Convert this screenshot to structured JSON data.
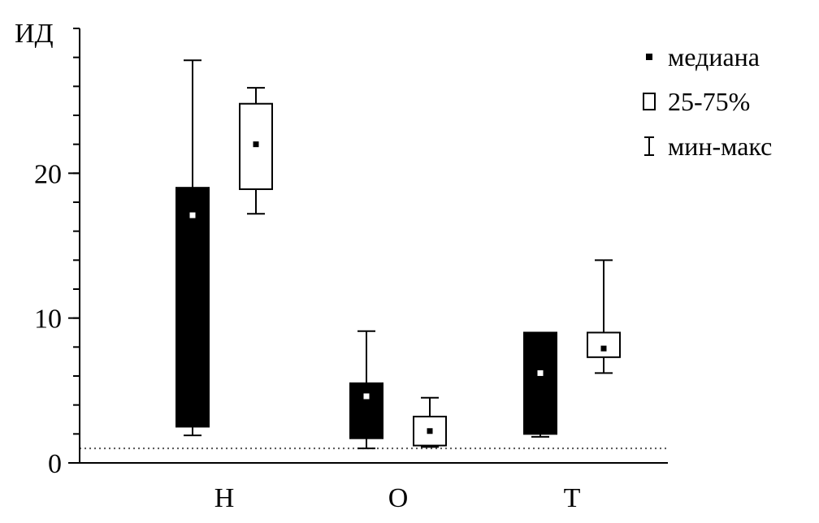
{
  "chart_data": {
    "type": "boxplot",
    "title": "",
    "ylabel": "ИД",
    "xlabel": "",
    "ylim": [
      0,
      30
    ],
    "yticks_major": [
      0,
      10,
      20
    ],
    "yticks_minor_step": 2,
    "categories": [
      "Н",
      "О",
      "Т"
    ],
    "reference_line": {
      "y": 1,
      "style": "dotted"
    },
    "series": [
      {
        "fill": "#000000",
        "boxes": [
          {
            "category": "Н",
            "min": 1.9,
            "q1": 2.5,
            "median": 17.1,
            "q3": 19.0,
            "max": 27.8
          },
          {
            "category": "О",
            "min": 1.0,
            "q1": 1.7,
            "median": 4.6,
            "q3": 5.5,
            "max": 9.1
          },
          {
            "category": "Т",
            "min": 1.8,
            "q1": 2.0,
            "median": 6.2,
            "q3": 9.0,
            "max": 9.0
          }
        ]
      },
      {
        "fill": "#ffffff",
        "boxes": [
          {
            "category": "Н",
            "min": 17.2,
            "q1": 18.9,
            "median": 22.0,
            "q3": 24.8,
            "max": 25.9
          },
          {
            "category": "О",
            "min": 1.1,
            "q1": 1.2,
            "median": 2.2,
            "q3": 3.2,
            "max": 4.5
          },
          {
            "category": "Т",
            "min": 6.2,
            "q1": 7.3,
            "median": 7.9,
            "q3": 9.0,
            "max": 14.0
          }
        ]
      }
    ],
    "legend": {
      "placement": "top-right",
      "items": [
        {
          "icon": "median-square-icon",
          "label": "медиана"
        },
        {
          "icon": "box-rect-icon",
          "label": "25-75%"
        },
        {
          "icon": "whisker-i-icon",
          "label": "мин-макс"
        }
      ]
    }
  }
}
